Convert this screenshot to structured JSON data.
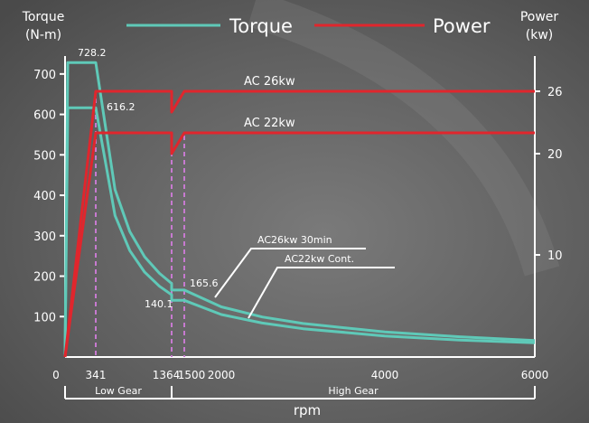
{
  "chart_data": {
    "type": "line",
    "x_label": "rpm",
    "y_left_label": "Torque\n(N-m)",
    "y_right_label": "Power\n(kw)",
    "legend": [
      {
        "name": "Torque",
        "color": "#5fc9b8"
      },
      {
        "name": "Power",
        "color": "#e0262d"
      }
    ],
    "x_ticks": [
      0,
      341,
      1364,
      1500,
      2000,
      4000,
      6000
    ],
    "y_left_ticks": [
      100,
      200,
      300,
      400,
      500,
      600,
      700
    ],
    "y_right_ticks": [
      10,
      20,
      26
    ],
    "y_left_range": [
      0,
      760
    ],
    "y_right_range": [
      0,
      30
    ],
    "x_range": [
      0,
      6000
    ],
    "gear_ranges": [
      {
        "label": "Low Gear",
        "from": 0,
        "to": 1364
      },
      {
        "label": "High Gear",
        "from": 1364,
        "to": 6000
      }
    ],
    "vertical_markers": [
      341,
      1364,
      1500
    ],
    "series": [
      {
        "name": "AC26kw 30min",
        "kind": "torque",
        "points": [
          [
            0,
            0
          ],
          [
            30,
            728.2
          ],
          [
            341,
            728.2
          ],
          [
            600,
            414
          ],
          [
            800,
            310
          ],
          [
            1000,
            248
          ],
          [
            1200,
            207
          ],
          [
            1364,
            182
          ],
          [
            1364,
            165.6
          ],
          [
            1500,
            165.6
          ],
          [
            2000,
            124
          ],
          [
            2500,
            99
          ],
          [
            3000,
            83
          ],
          [
            4000,
            62
          ],
          [
            5000,
            50
          ],
          [
            6000,
            41
          ]
        ]
      },
      {
        "name": "AC22kw Cont.",
        "kind": "torque",
        "points": [
          [
            0,
            0
          ],
          [
            30,
            616.2
          ],
          [
            341,
            616.2
          ],
          [
            600,
            350
          ],
          [
            800,
            263
          ],
          [
            1000,
            210
          ],
          [
            1200,
            175
          ],
          [
            1364,
            154
          ],
          [
            1364,
            140.1
          ],
          [
            1500,
            140.1
          ],
          [
            2000,
            105
          ],
          [
            2500,
            84
          ],
          [
            3000,
            70
          ],
          [
            4000,
            52
          ],
          [
            5000,
            42
          ],
          [
            6000,
            35
          ]
        ]
      },
      {
        "name": "AC 26kw",
        "kind": "power",
        "points": [
          [
            0,
            0
          ],
          [
            341,
            26
          ],
          [
            1364,
            26
          ],
          [
            1364,
            24
          ],
          [
            1500,
            26
          ],
          [
            6000,
            26
          ]
        ]
      },
      {
        "name": "AC 22kw",
        "kind": "power",
        "points": [
          [
            0,
            0
          ],
          [
            341,
            22
          ],
          [
            1364,
            22
          ],
          [
            1364,
            20
          ],
          [
            1500,
            22
          ],
          [
            6000,
            22
          ]
        ]
      }
    ],
    "point_labels": [
      {
        "text": "728.2",
        "x": 341,
        "y": 728.2,
        "kind": "torque"
      },
      {
        "text": "616.2",
        "x": 341,
        "y": 616.2,
        "kind": "torque"
      },
      {
        "text": "165.6",
        "x": 1500,
        "y": 165.6,
        "kind": "torque"
      },
      {
        "text": "140.1",
        "x": 1364,
        "y": 140.1,
        "kind": "torque"
      }
    ],
    "power_line_labels": [
      "AC  26kw",
      "AC  22kw"
    ],
    "torque_curve_labels": [
      "AC26kw  30min",
      "AC22kw  Cont."
    ]
  }
}
